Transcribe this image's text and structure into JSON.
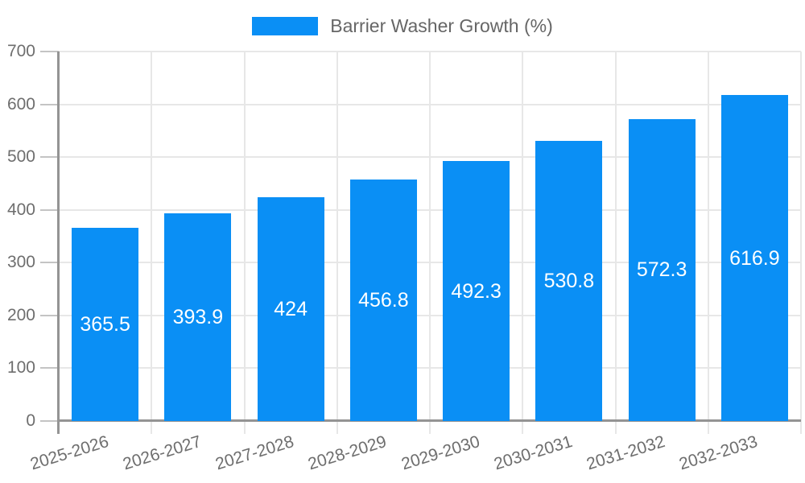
{
  "chart_data": {
    "type": "bar",
    "title": "Barrier Washer Growth (%)",
    "legend_position": "top",
    "categories": [
      "2025-2026",
      "2026-2027",
      "2027-2028",
      "2028-2029",
      "2029-2030",
      "2030-2031",
      "2031-2032",
      "2032-2033"
    ],
    "values": [
      365.5,
      393.9,
      424,
      456.8,
      492.3,
      530.8,
      572.3,
      616.9
    ],
    "value_labels": [
      "365.5",
      "393.9",
      "424",
      "456.8",
      "492.3",
      "530.8",
      "572.3",
      "616.9"
    ],
    "xlabel": "",
    "ylabel": "",
    "ylim": [
      0,
      700
    ],
    "ytick_step": 100,
    "ytick_labels": [
      "0",
      "100",
      "200",
      "300",
      "400",
      "500",
      "600",
      "700"
    ],
    "grid": true,
    "colors": {
      "bar": "#0a8ff5",
      "bar_label": "#ffffff",
      "grid": "#e7e7e7",
      "axis": "#949494",
      "tick": "#c4c4c4",
      "tick_text": "#6e6e6e",
      "legend_text": "#666666"
    }
  }
}
